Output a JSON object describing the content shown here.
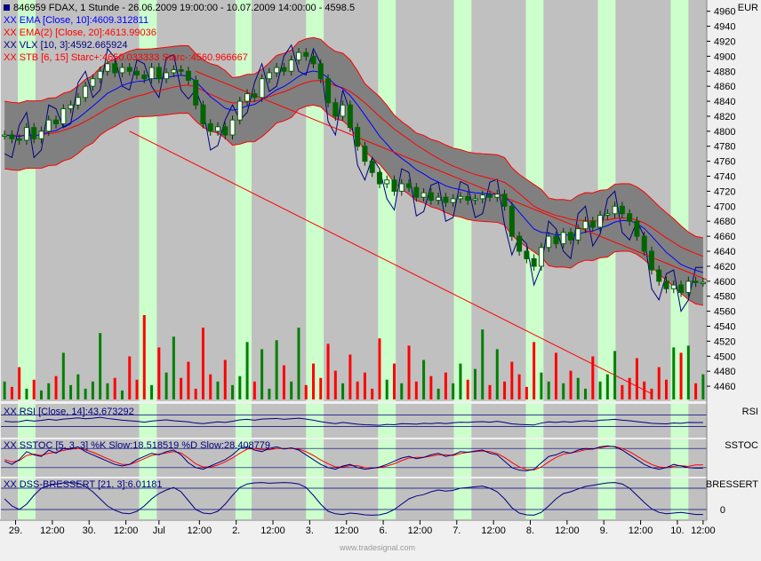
{
  "header": {
    "title": "846959  FDAX, 1 Stunde - 26.06.2009 19:00:00 - 10.07.2009 14:00:00 - 4598.5",
    "currency": "EUR"
  },
  "legend": {
    "ema10": "XX EMA [Close, 10]:4609.312811",
    "ema20": "XX EMA(2) [Close, 20]:4613.99036",
    "vlx": "XX VLX [10, 3]:4592.665924",
    "stb": "XX STB [6, 15] Starc+:4650.033333 Starc-:4560.966667",
    "rsi": "XX RSI [Close, 14]:43.673292",
    "sstoc": "XX SSTOC [5, 3, 3] %K Slow:18.518519 %D Slow:28.408779",
    "dss": "XX DSS-BRESSERT [21, 3]:6.01181"
  },
  "panel_labels": {
    "rsi": "RSI",
    "sstoc": "SSTOC",
    "dss": "BRESSERT",
    "dss_zero": "0"
  },
  "watermark": "www.tradesignal.com",
  "colors": {
    "background": "#c0c0c0",
    "session_band": "#ccffcc",
    "candle": "#006400",
    "envelope_fill": "#808080",
    "envelope_line": "#ff0000",
    "ema10": "#0000ff",
    "ema20": "#ff0000",
    "vlx": "#000080",
    "channel": "#ff0000",
    "volume_up": "#008000",
    "volume_down": "#ff0000",
    "indicator": "#000080"
  },
  "chart_data": {
    "type": "candlestick",
    "instrument": "FDAX",
    "timeframe": "1 Stunde",
    "ylim": [
      4440,
      4975
    ],
    "yticks": [
      4960,
      4940,
      4920,
      4900,
      4880,
      4860,
      4840,
      4820,
      4800,
      4780,
      4760,
      4740,
      4720,
      4700,
      4680,
      4660,
      4640,
      4620,
      4600,
      4580,
      4560,
      4540,
      4520,
      4500,
      4480,
      4460
    ],
    "xlim": [
      0,
      96
    ],
    "xticks": [
      {
        "x": 2,
        "label": "29."
      },
      {
        "x": 7,
        "label": "12:00"
      },
      {
        "x": 12,
        "label": "30."
      },
      {
        "x": 17,
        "label": "12:00"
      },
      {
        "x": 21.5,
        "label": "Jul"
      },
      {
        "x": 27,
        "label": "12:00"
      },
      {
        "x": 32,
        "label": "2."
      },
      {
        "x": 37,
        "label": "12:00"
      },
      {
        "x": 42,
        "label": "3."
      },
      {
        "x": 47,
        "label": "12:00"
      },
      {
        "x": 52,
        "label": "6."
      },
      {
        "x": 57,
        "label": "12:00"
      },
      {
        "x": 62,
        "label": "7."
      },
      {
        "x": 67,
        "label": "12:00"
      },
      {
        "x": 72,
        "label": "8."
      },
      {
        "x": 77,
        "label": "12:00"
      },
      {
        "x": 82,
        "label": "9."
      },
      {
        "x": 87,
        "label": "12:00"
      },
      {
        "x": 92,
        "label": "10."
      },
      {
        "x": 95.5,
        "label": "12:00"
      }
    ],
    "session_bands": [
      [
        2.3,
        4.7
      ],
      [
        18.8,
        21.2
      ],
      [
        31.9,
        34.1
      ],
      [
        41.5,
        43.9
      ],
      [
        51.3,
        53.7
      ],
      [
        61.6,
        64.0
      ],
      [
        71.4,
        73.8
      ],
      [
        81.2,
        83.6
      ],
      [
        91.1,
        93.5
      ]
    ],
    "close": [
      4795,
      4790,
      4788,
      4805,
      4790,
      4800,
      4815,
      4810,
      4830,
      4835,
      4845,
      4860,
      4870,
      4880,
      4890,
      4878,
      4885,
      4880,
      4875,
      4870,
      4885,
      4870,
      4878,
      4882,
      4880,
      4868,
      4835,
      4810,
      4800,
      4806,
      4795,
      4815,
      4840,
      4850,
      4845,
      4870,
      4878,
      4885,
      4880,
      4895,
      4905,
      4900,
      4890,
      4870,
      4838,
      4820,
      4835,
      4805,
      4780,
      4760,
      4745,
      4730,
      4735,
      4720,
      4730,
      4725,
      4712,
      4718,
      4708,
      4712,
      4705,
      4710,
      4713,
      4708,
      4710,
      4715,
      4712,
      4716,
      4700,
      4660,
      4640,
      4630,
      4620,
      4645,
      4660,
      4650,
      4665,
      4655,
      4670,
      4680,
      4672,
      4688,
      4690,
      4700,
      4690,
      4680,
      4660,
      4640,
      4615,
      4600,
      4590,
      4595,
      4585,
      4600,
      4598.5,
      4598.5
    ],
    "support_channel": [
      [
        17,
        4800
      ],
      [
        88,
        4450
      ]
    ],
    "resistance_channel": [
      [
        26,
        4880
      ],
      [
        96,
        4600
      ]
    ],
    "volume": [
      1.0,
      0.7,
      1.8,
      0.6,
      1.1,
      0.5,
      0.9,
      1.3,
      2.6,
      0.8,
      1.4,
      0.6,
      1.0,
      3.7,
      0.9,
      1.2,
      0.5,
      2.4,
      1.1,
      4.7,
      0.8,
      2.9,
      1.5,
      3.5,
      1.2,
      2.1,
      0.6,
      4.0,
      1.4,
      1.0,
      2.2,
      0.8,
      1.3,
      3.2,
      1.0,
      2.8,
      0.6,
      3.3,
      1.9,
      1.0,
      4.0,
      0.8,
      2.0,
      1.2,
      3.1,
      1.6,
      0.9,
      2.5,
      1.0,
      1.5,
      0.6,
      3.4,
      1.1,
      2.0,
      0.9,
      3.0,
      1.0,
      2.2,
      1.3,
      0.6,
      1.5,
      0.9,
      2.0,
      1.1,
      1.7,
      3.9,
      0.8,
      2.8,
      1.0,
      2.1,
      1.4,
      0.7,
      3.2,
      1.5,
      1.0,
      2.6,
      0.9,
      1.6,
      1.2,
      0.6,
      2.4,
      1.0,
      1.4,
      2.7,
      0.8,
      1.2,
      2.3,
      1.0,
      0.6,
      1.8,
      1.1,
      2.9,
      2.6,
      3.0,
      0.9,
      1.4
    ],
    "rsi": [
      48,
      46,
      47,
      52,
      49,
      51,
      55,
      52,
      56,
      58,
      60,
      57,
      59,
      62,
      58,
      55,
      52,
      50,
      48,
      45,
      49,
      51,
      53,
      50,
      48,
      46,
      42,
      40,
      43,
      46,
      44,
      48,
      53,
      55,
      52,
      56,
      57,
      58,
      55,
      57,
      59,
      56,
      52,
      47,
      43,
      40,
      44,
      41,
      38,
      36,
      35,
      34,
      37,
      36,
      40,
      39,
      38,
      41,
      40,
      42,
      40,
      43,
      45,
      44,
      46,
      47,
      45,
      48,
      44,
      39,
      37,
      36,
      35,
      42,
      46,
      44,
      47,
      45,
      48,
      50,
      48,
      52,
      53,
      55,
      52,
      50,
      47,
      44,
      41,
      40,
      39,
      42,
      41,
      44,
      43.7,
      43.7
    ],
    "sstoc_k": [
      40,
      30,
      45,
      70,
      60,
      55,
      75,
      65,
      80,
      78,
      85,
      70,
      60,
      50,
      40,
      30,
      25,
      30,
      45,
      55,
      65,
      60,
      70,
      75,
      60,
      35,
      20,
      15,
      25,
      35,
      45,
      60,
      80,
      85,
      75,
      70,
      80,
      85,
      78,
      82,
      75,
      60,
      45,
      30,
      20,
      15,
      25,
      30,
      20,
      15,
      18,
      22,
      30,
      40,
      50,
      55,
      48,
      52,
      60,
      65,
      55,
      60,
      70,
      68,
      72,
      75,
      65,
      60,
      40,
      20,
      12,
      10,
      15,
      35,
      55,
      60,
      70,
      65,
      75,
      80,
      78,
      85,
      88,
      85,
      75,
      60,
      45,
      30,
      20,
      15,
      20,
      30,
      25,
      20,
      18.5,
      18.5
    ],
    "sstoc_d": [
      45,
      38,
      42,
      58,
      62,
      58,
      65,
      68,
      74,
      78,
      80,
      76,
      68,
      58,
      48,
      38,
      30,
      30,
      38,
      48,
      58,
      62,
      66,
      70,
      66,
      50,
      32,
      22,
      22,
      28,
      38,
      50,
      65,
      78,
      80,
      76,
      76,
      80,
      80,
      80,
      78,
      70,
      58,
      44,
      32,
      22,
      22,
      26,
      26,
      20,
      18,
      20,
      25,
      32,
      42,
      50,
      52,
      52,
      56,
      60,
      60,
      58,
      64,
      68,
      70,
      72,
      70,
      64,
      52,
      36,
      22,
      14,
      13,
      22,
      38,
      52,
      62,
      66,
      70,
      76,
      78,
      82,
      86,
      86,
      80,
      70,
      56,
      42,
      30,
      22,
      20,
      24,
      26,
      24,
      28.4,
      28.4
    ],
    "dss": [
      50,
      30,
      20,
      35,
      60,
      80,
      88,
      92,
      95,
      96,
      94,
      85,
      70,
      50,
      30,
      18,
      10,
      8,
      15,
      30,
      50,
      65,
      75,
      82,
      70,
      45,
      20,
      10,
      8,
      15,
      35,
      60,
      82,
      92,
      95,
      96,
      94,
      95,
      96,
      95,
      92,
      82,
      60,
      35,
      15,
      8,
      6,
      10,
      8,
      5,
      4,
      5,
      10,
      20,
      35,
      50,
      58,
      62,
      70,
      75,
      72,
      74,
      80,
      82,
      84,
      86,
      80,
      70,
      50,
      25,
      10,
      5,
      4,
      12,
      30,
      50,
      65,
      70,
      78,
      85,
      88,
      92,
      95,
      96,
      92,
      80,
      60,
      40,
      22,
      12,
      8,
      10,
      12,
      9,
      6.0,
      6.0
    ]
  }
}
